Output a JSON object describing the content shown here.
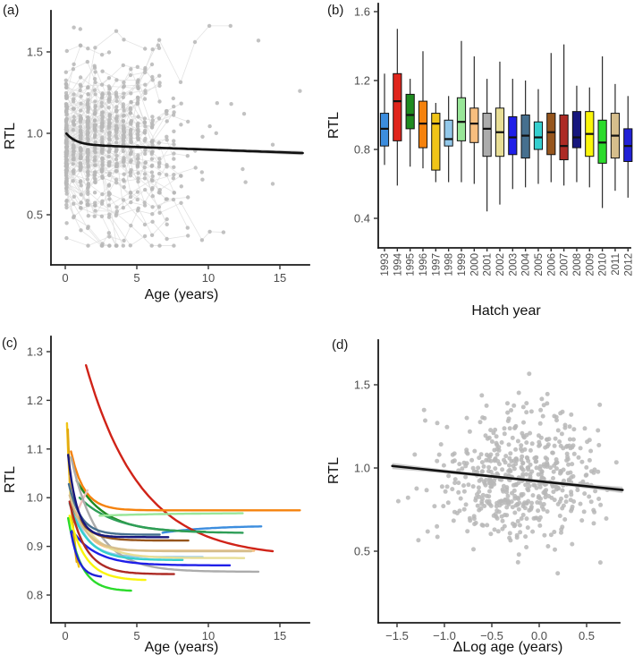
{
  "figure": {
    "background": "#ffffff",
    "panels": [
      {
        "tag": "(a)",
        "name": "longitudinal-scatter"
      },
      {
        "tag": "(b)",
        "name": "hatch-year-boxplots"
      },
      {
        "tag": "(c)",
        "name": "individual-cohort-curves"
      },
      {
        "tag": "(d)",
        "name": "within-individual-scatter"
      }
    ]
  },
  "chart_data": [
    {
      "panel": "a",
      "type": "scatter",
      "xlabel": "Age (years)",
      "ylabel": "RTL",
      "xlim": [
        -1,
        17.2
      ],
      "ylim": [
        0.19,
        1.75
      ],
      "xticks": [
        {
          "v": 0,
          "label": "0"
        },
        {
          "v": 5,
          "label": "5"
        },
        {
          "v": 10,
          "label": "10"
        },
        {
          "v": 15,
          "label": "15"
        }
      ],
      "yticks": [
        {
          "v": 0.5,
          "label": "0.5"
        },
        {
          "v": 1.0,
          "label": "1.0"
        },
        {
          "v": 1.5,
          "label": "1.5"
        }
      ],
      "grid": false,
      "point_color": "#b7b7b7",
      "track_color": "#e0e0e0",
      "scatter_model": {
        "seed": 20,
        "individuals": 150,
        "singles": 45,
        "start_age": 0.08,
        "age_step": 0.5,
        "rtl_mean": 0.96,
        "rtl_sd": 0.18,
        "step_drift": -0.008,
        "step_sd": 0.11,
        "y_clip": [
          0.31,
          1.66
        ],
        "max_age": 16.6
      },
      "outlier_points": [
        [
          0.6,
          1.65
        ],
        [
          1.05,
          1.64
        ],
        [
          6.5,
          1.54
        ],
        [
          13.5,
          1.57
        ],
        [
          16.4,
          1.26
        ],
        [
          14.5,
          0.93
        ],
        [
          14.5,
          0.69
        ],
        [
          12.4,
          0.78
        ],
        [
          12.6,
          0.7
        ],
        [
          11.6,
          1.18
        ],
        [
          12.5,
          1.12
        ]
      ],
      "trend": {
        "model": "y = base + amp*exp(-k*age) + slope*age",
        "base": 0.932,
        "amp": 0.075,
        "k": 1.5,
        "slope": -0.0032,
        "x_start": 0.08,
        "x_end": 16.6,
        "color": "#111111",
        "ci": {
          "h0": 0.006,
          "h1": 0.013,
          "color": "#c2c2c2"
        }
      }
    },
    {
      "panel": "b",
      "type": "box",
      "xlabel": "Hatch year",
      "ylabel": "RTL",
      "yticks": [
        {
          "v": 0.4,
          "label": "0.4"
        },
        {
          "v": 0.8,
          "label": "0.8"
        },
        {
          "v": 1.2,
          "label": "1.2"
        },
        {
          "v": 1.6,
          "label": "1.6"
        }
      ],
      "categories": [
        "1993",
        "1994",
        "1995",
        "1996",
        "1997",
        "1998",
        "1999",
        "2000",
        "2001",
        "2002",
        "2003",
        "2004",
        "2005",
        "2006",
        "2007",
        "2008",
        "2009",
        "2010",
        "2011",
        "2012"
      ],
      "colors": [
        "#3C8DDE",
        "#E0251C",
        "#1F8B20",
        "#F5820D",
        "#F0C417",
        "#92C8EA",
        "#98E698",
        "#F7BE7E",
        "#ACACAC",
        "#E8DE96",
        "#1F1FE8",
        "#46708F",
        "#35CFCF",
        "#96551C",
        "#AD2B25",
        "#17177D",
        "#FAF50A",
        "#2BDB2B",
        "#D6BE8C",
        "#2121D6"
      ],
      "stats_order": [
        "whisker_low",
        "q1",
        "median",
        "q3",
        "whisker_high"
      ],
      "stats": [
        [
          0.71,
          0.82,
          0.92,
          1.01,
          1.24
        ],
        [
          0.59,
          0.85,
          1.08,
          1.24,
          1.5
        ],
        [
          0.7,
          0.92,
          1.0,
          1.12,
          1.21
        ],
        [
          0.69,
          0.81,
          0.95,
          1.08,
          1.37
        ],
        [
          0.61,
          0.68,
          0.95,
          1.01,
          1.07
        ],
        [
          0.61,
          0.82,
          0.86,
          0.97,
          1.11
        ],
        [
          0.61,
          0.85,
          0.96,
          1.1,
          1.43
        ],
        [
          0.6,
          0.84,
          0.95,
          1.04,
          1.34
        ],
        [
          0.44,
          0.76,
          0.92,
          1.01,
          1.21
        ],
        [
          0.48,
          0.76,
          0.9,
          1.04,
          1.31
        ],
        [
          0.57,
          0.77,
          0.87,
          0.99,
          1.21
        ],
        [
          0.58,
          0.75,
          0.88,
          1.0,
          1.2
        ],
        [
          0.6,
          0.8,
          0.87,
          0.96,
          1.15
        ],
        [
          0.61,
          0.77,
          0.9,
          1.01,
          1.36
        ],
        [
          0.59,
          0.74,
          0.82,
          1.0,
          1.41
        ],
        [
          0.61,
          0.81,
          0.87,
          1.02,
          1.17
        ],
        [
          0.58,
          0.76,
          0.89,
          1.02,
          1.16
        ],
        [
          0.46,
          0.72,
          0.84,
          0.97,
          1.34
        ],
        [
          0.56,
          0.75,
          0.88,
          1.01,
          1.18
        ],
        [
          0.52,
          0.73,
          0.82,
          0.92,
          1.11
        ]
      ]
    },
    {
      "panel": "c",
      "type": "line",
      "xlabel": "Age (years)",
      "ylabel": "RTL",
      "xticks": [
        {
          "v": 0,
          "label": "0"
        },
        {
          "v": 5,
          "label": "5"
        },
        {
          "v": 10,
          "label": "10"
        },
        {
          "v": 15,
          "label": "15"
        }
      ],
      "yticks": [
        {
          "v": 0.8,
          "label": "0.8"
        },
        {
          "v": 0.9,
          "label": "0.9"
        },
        {
          "v": 1.0,
          "label": "1.0"
        },
        {
          "v": 1.1,
          "label": "1.1"
        },
        {
          "v": 1.2,
          "label": "1.2"
        },
        {
          "v": 1.3,
          "label": "1.3"
        }
      ],
      "curve_model": "y = y1 + (y0-y1)*(exp(-k*(x-x0)) - E)/(1-E), E = exp(-k*(x1-x0))",
      "curves": [
        {
          "year": "1993",
          "color": "#3C8DDE",
          "x0": 6.8,
          "y0": 0.928,
          "x1": 13.7,
          "y1": 0.941,
          "k": 0.3
        },
        {
          "year": "1994",
          "color": "#D02318",
          "x0": 1.45,
          "y0": 1.272,
          "x1": 14.5,
          "y1": 0.89,
          "k": 0.26
        },
        {
          "year": "1995",
          "color": "#1F8B20",
          "x0": 0.8,
          "y0": 1.035,
          "x1": 9.8,
          "y1": 0.93,
          "k": 0.5
        },
        {
          "year": "1995b",
          "color": "#2E9E57",
          "x0": 1.0,
          "y0": 1.0,
          "x1": 12.4,
          "y1": 0.928,
          "k": 0.4
        },
        {
          "year": "1996",
          "color": "#F5820D",
          "x0": 0.4,
          "y0": 1.095,
          "x1": 16.4,
          "y1": 0.974,
          "k": 1.1
        },
        {
          "year": "1997",
          "color": "#F0C417",
          "x0": 0.12,
          "y0": 1.153,
          "x1": 0.95,
          "y1": 0.858,
          "k": 2.2
        },
        {
          "year": "1997b",
          "color": "#E2A80F",
          "x0": 0.18,
          "y0": 1.14,
          "x1": 0.8,
          "y1": 0.868,
          "k": 2.2
        },
        {
          "year": "1998",
          "color": "#92C8EA",
          "x0": 0.35,
          "y0": 1.005,
          "x1": 9.6,
          "y1": 0.878,
          "k": 1.0
        },
        {
          "year": "1999",
          "color": "#98E698",
          "x0": 2.4,
          "y0": 0.963,
          "x1": 12.4,
          "y1": 0.968,
          "k": 0.2
        },
        {
          "year": "2000",
          "color": "#F7BE7E",
          "x0": 0.35,
          "y0": 1.045,
          "x1": 13.2,
          "y1": 0.891,
          "k": 1.2
        },
        {
          "year": "2000b",
          "color": "#F0BFBC",
          "x0": 0.62,
          "y0": 0.953,
          "x1": 1.55,
          "y1": 1.015,
          "k": 0.5
        },
        {
          "year": "2001",
          "color": "#ACACAC",
          "x0": 0.4,
          "y0": 1.083,
          "x1": 13.5,
          "y1": 0.848,
          "k": 0.55
        },
        {
          "year": "2002",
          "color": "#E8DE96",
          "x0": 0.3,
          "y0": 1.02,
          "x1": 12.5,
          "y1": 0.876,
          "k": 0.7
        },
        {
          "year": "2003",
          "color": "#1F1FE8",
          "x0": 0.5,
          "y0": 0.932,
          "x1": 11.5,
          "y1": 0.861,
          "k": 0.6
        },
        {
          "year": "2004",
          "color": "#46708F",
          "x0": 0.25,
          "y0": 1.028,
          "x1": 6.6,
          "y1": 0.924,
          "k": 1.2
        },
        {
          "year": "2005",
          "color": "#35CFCF",
          "x0": 0.3,
          "y0": 0.988,
          "x1": 8.2,
          "y1": 0.872,
          "k": 0.8
        },
        {
          "year": "2006",
          "color": "#96551C",
          "x0": 0.45,
          "y0": 0.985,
          "x1": 8.6,
          "y1": 0.912,
          "k": 1.0
        },
        {
          "year": "2007",
          "color": "#AD2B25",
          "x0": 0.3,
          "y0": 0.992,
          "x1": 7.6,
          "y1": 0.843,
          "k": 0.9
        },
        {
          "year": "2008",
          "color": "#17177D",
          "x0": 0.2,
          "y0": 1.088,
          "x1": 7.2,
          "y1": 0.919,
          "k": 1.6
        },
        {
          "year": "2009",
          "color": "#FAF50A",
          "x0": 0.3,
          "y0": 0.963,
          "x1": 5.6,
          "y1": 0.831,
          "k": 0.9
        },
        {
          "year": "2010",
          "color": "#2BDB2B",
          "x0": 0.2,
          "y0": 0.958,
          "x1": 4.6,
          "y1": 0.809,
          "k": 1.1
        },
        {
          "year": "2011",
          "color": "#D6BE8C",
          "x0": 0.3,
          "y0": 1.005,
          "x1": 13.0,
          "y1": 0.89,
          "k": 0.9
        },
        {
          "year": "2012",
          "color": "#2121D6",
          "x0": 0.4,
          "y0": 0.93,
          "x1": 2.5,
          "y1": 0.838,
          "k": 1.8
        }
      ]
    },
    {
      "panel": "d",
      "type": "scatter",
      "xlabel": "ΔLog age (years)",
      "ylabel": "RTL",
      "xticks": [
        {
          "v": -1.5,
          "label": "−1.5"
        },
        {
          "v": -1.0,
          "label": "−1.0"
        },
        {
          "v": -0.5,
          "label": "−0.5"
        },
        {
          "v": 0.0,
          "label": "0.0"
        },
        {
          "v": 0.5,
          "label": "0.5"
        }
      ],
      "yticks": [
        {
          "v": 0.5,
          "label": "0.5"
        },
        {
          "v": 1.0,
          "label": "1.0"
        },
        {
          "v": 1.5,
          "label": "1.5"
        }
      ],
      "point_color": "#b7b7b7",
      "scatter_model": {
        "seed": 77,
        "n": 560,
        "x_mean": -0.18,
        "x_sd": 0.42,
        "x_clip": [
          -1.58,
          0.85
        ],
        "y_mean": 0.945,
        "y_sd": 0.21,
        "y_clip": [
          0.34,
          1.66
        ]
      },
      "trend": {
        "x_start": -1.55,
        "y_start": 1.012,
        "x_end": 0.88,
        "y_end": 0.868,
        "color": "#111111",
        "ci": {
          "hmid": 0.009,
          "hend": 0.019,
          "xmid": -0.35,
          "color": "#c2c2c2"
        }
      }
    }
  ]
}
